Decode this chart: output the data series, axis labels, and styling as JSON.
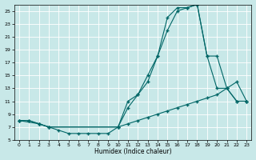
{
  "bg_color": "#c8e8e8",
  "line_color": "#006666",
  "xlabel": "Humidex (Indice chaleur)",
  "xlim": [
    -0.5,
    23.5
  ],
  "ylim": [
    5,
    26
  ],
  "yticks": [
    5,
    7,
    9,
    11,
    13,
    15,
    17,
    19,
    21,
    23,
    25
  ],
  "xticks": [
    0,
    1,
    2,
    3,
    4,
    5,
    6,
    7,
    8,
    9,
    10,
    11,
    12,
    13,
    14,
    15,
    16,
    17,
    18,
    19,
    20,
    21,
    22,
    23
  ],
  "lines": [
    {
      "x": [
        0,
        1,
        2,
        3,
        4,
        5,
        6,
        7,
        8,
        9,
        10,
        11,
        12,
        13,
        14,
        15,
        16,
        17,
        18,
        19,
        20,
        21,
        22,
        23
      ],
      "y": [
        8,
        8,
        7.5,
        7,
        6.5,
        6,
        6,
        6,
        6,
        6,
        7,
        7.5,
        8,
        8.5,
        9,
        9.5,
        10,
        10.5,
        11,
        11.5,
        12,
        13,
        14,
        11
      ]
    },
    {
      "x": [
        0,
        2,
        3,
        10,
        11,
        12,
        13,
        14,
        15,
        16,
        17,
        18,
        19,
        20,
        21,
        22,
        23
      ],
      "y": [
        8,
        7.5,
        7,
        7,
        10,
        12,
        14,
        18,
        22,
        25,
        25.5,
        26,
        18,
        13,
        13,
        11,
        11
      ]
    },
    {
      "x": [
        0,
        1,
        2,
        3,
        10,
        11,
        12,
        13,
        14,
        15,
        16,
        17,
        18,
        19,
        20,
        21,
        22,
        23
      ],
      "y": [
        8,
        8,
        7.5,
        7,
        7,
        11,
        12,
        15,
        18,
        24,
        25.5,
        25.5,
        26,
        18,
        18,
        13,
        11,
        11
      ]
    }
  ]
}
